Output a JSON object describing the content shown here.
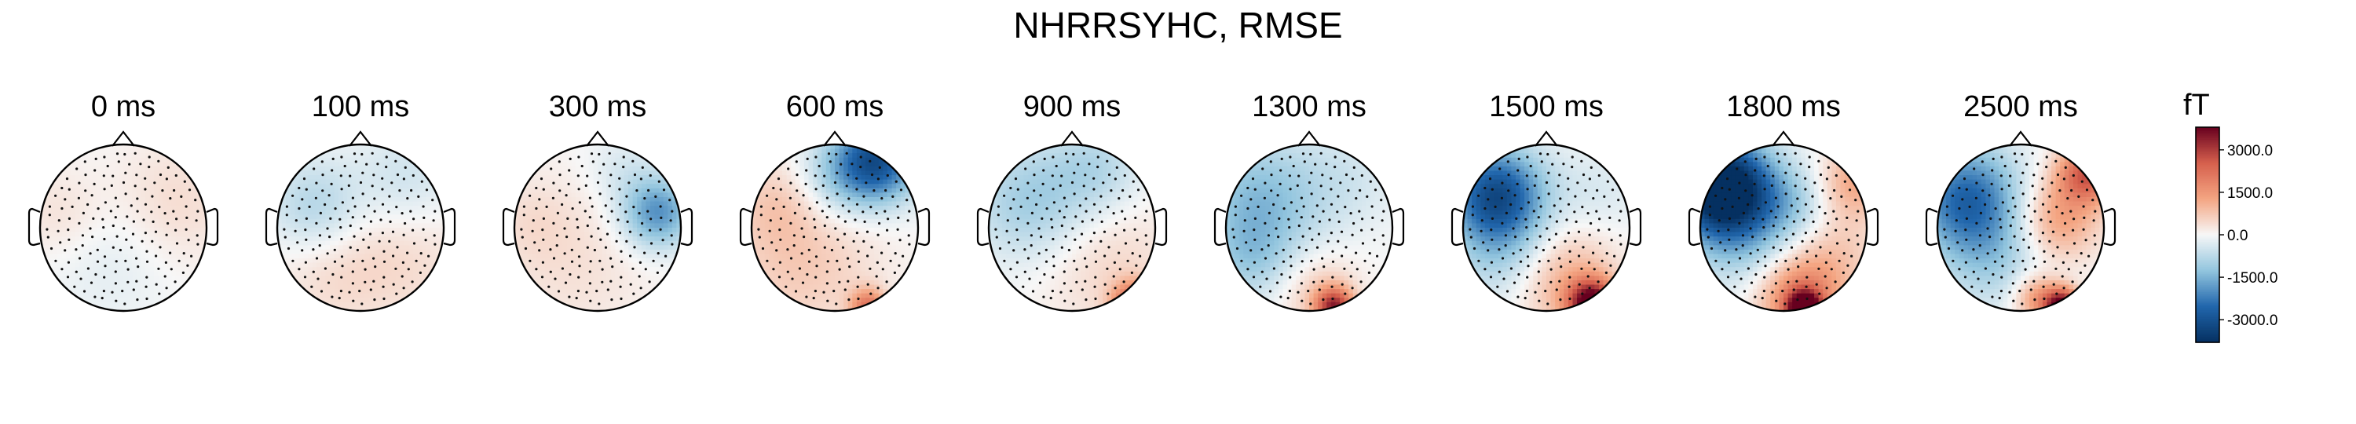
{
  "chart_data": {
    "type": "heatmap",
    "subtype": "topomap",
    "title": "NHRRSYHC, RMSE",
    "colormap": "RdBu_r",
    "colors": {
      "neg_max": "#053061",
      "neg": "#2166ac",
      "neg_light": "#92c5de",
      "zero": "#f7f7f7",
      "pos_light": "#f4a582",
      "pos": "#d6604d",
      "pos_max": "#67001f"
    },
    "colorbar": {
      "unit": "fT",
      "ticks": [
        3000.0,
        1500.0,
        0.0,
        -1500.0,
        -3000.0
      ],
      "tick_labels": [
        "3000.0",
        "1500.0",
        "0.0",
        "-1500.0",
        "-3000.0"
      ],
      "range": [
        -3800,
        3800
      ]
    },
    "panels": [
      {
        "title": "0 ms",
        "blobs": [
          {
            "x": 0.55,
            "y": 0.25,
            "r": 0.55,
            "v": 500
          },
          {
            "x": -0.75,
            "y": 0.15,
            "r": 0.4,
            "v": 400
          },
          {
            "x": -0.1,
            "y": -0.25,
            "r": 0.6,
            "v": -350
          }
        ]
      },
      {
        "title": "100 ms",
        "blobs": [
          {
            "x": -0.55,
            "y": 0.25,
            "r": 0.4,
            "v": -900
          },
          {
            "x": 0.55,
            "y": 0.55,
            "r": 0.45,
            "v": -600
          },
          {
            "x": 0.5,
            "y": -0.3,
            "r": 0.6,
            "v": 450
          },
          {
            "x": -0.4,
            "y": -0.55,
            "r": 0.5,
            "v": 350
          }
        ]
      },
      {
        "title": "300 ms",
        "blobs": [
          {
            "x": 0.72,
            "y": 0.18,
            "r": 0.3,
            "v": -2000
          },
          {
            "x": 0.3,
            "y": 0.7,
            "r": 0.3,
            "v": -400
          },
          {
            "x": -0.3,
            "y": -0.4,
            "r": 0.7,
            "v": 350
          },
          {
            "x": -0.8,
            "y": 0.1,
            "r": 0.35,
            "v": 250
          }
        ]
      },
      {
        "title": "600 ms",
        "blobs": [
          {
            "x": 0.5,
            "y": 0.8,
            "r": 0.35,
            "v": -3000
          },
          {
            "x": 0.0,
            "y": 0.6,
            "r": 0.35,
            "v": -800
          },
          {
            "x": -0.4,
            "y": -0.4,
            "r": 0.65,
            "v": 700
          },
          {
            "x": 0.4,
            "y": -0.95,
            "r": 0.15,
            "v": 2000
          },
          {
            "x": -0.7,
            "y": 0.3,
            "r": 0.35,
            "v": 500
          }
        ]
      },
      {
        "title": "900 ms",
        "blobs": [
          {
            "x": -0.5,
            "y": 0.3,
            "r": 0.5,
            "v": -1100
          },
          {
            "x": 0.3,
            "y": 0.7,
            "r": 0.4,
            "v": -800
          },
          {
            "x": 0.4,
            "y": -0.4,
            "r": 0.6,
            "v": 500
          },
          {
            "x": 0.75,
            "y": -0.92,
            "r": 0.18,
            "v": 2800
          }
        ]
      },
      {
        "title": "1300 ms",
        "blobs": [
          {
            "x": -0.6,
            "y": 0.3,
            "r": 0.55,
            "v": -1400
          },
          {
            "x": -0.7,
            "y": -0.4,
            "r": 0.35,
            "v": -700
          },
          {
            "x": 0.5,
            "y": 0.6,
            "r": 0.45,
            "v": -400
          },
          {
            "x": 0.1,
            "y": -0.75,
            "r": 0.35,
            "v": 700
          },
          {
            "x": 0.3,
            "y": -0.95,
            "r": 0.16,
            "v": 3000
          }
        ]
      },
      {
        "title": "1500 ms",
        "blobs": [
          {
            "x": -0.6,
            "y": 0.4,
            "r": 0.4,
            "v": -3000
          },
          {
            "x": -0.5,
            "y": -0.3,
            "r": 0.45,
            "v": -1000
          },
          {
            "x": 0.2,
            "y": -0.6,
            "r": 0.45,
            "v": 1200
          },
          {
            "x": 0.55,
            "y": -0.92,
            "r": 0.2,
            "v": 4000
          },
          {
            "x": 0.6,
            "y": 0.4,
            "r": 0.4,
            "v": -400
          }
        ]
      },
      {
        "title": "1800 ms",
        "blobs": [
          {
            "x": -0.75,
            "y": 0.5,
            "r": 0.4,
            "v": -4000
          },
          {
            "x": -0.5,
            "y": 0.1,
            "r": 0.5,
            "v": -1500
          },
          {
            "x": 0.15,
            "y": 0.3,
            "r": 0.3,
            "v": -600
          },
          {
            "x": 0.85,
            "y": 0.55,
            "r": 0.3,
            "v": 1200
          },
          {
            "x": 0.6,
            "y": -0.3,
            "r": 0.4,
            "v": 700
          },
          {
            "x": 0.2,
            "y": -0.85,
            "r": 0.35,
            "v": 2000
          },
          {
            "x": 0.25,
            "y": -0.97,
            "r": 0.14,
            "v": 4000
          }
        ]
      },
      {
        "title": "2500 ms",
        "blobs": [
          {
            "x": -0.65,
            "y": 0.35,
            "r": 0.45,
            "v": -2500
          },
          {
            "x": -0.35,
            "y": -0.35,
            "r": 0.45,
            "v": -900
          },
          {
            "x": 0.45,
            "y": 0.1,
            "r": 0.35,
            "v": 1400
          },
          {
            "x": 0.8,
            "y": 0.65,
            "r": 0.25,
            "v": 2500
          },
          {
            "x": 0.5,
            "y": -0.95,
            "r": 0.15,
            "v": 4000
          },
          {
            "x": 0.2,
            "y": -0.85,
            "r": 0.2,
            "v": 1500
          }
        ]
      }
    ]
  }
}
